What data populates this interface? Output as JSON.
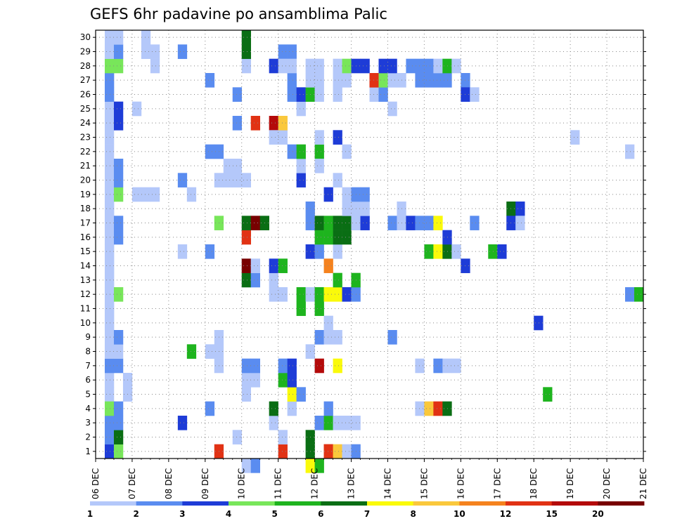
{
  "chart_data": {
    "type": "heatmap",
    "title": "GEFS 6hr padavine po ansamblima Palic",
    "xlabel": "",
    "ylabel": "",
    "x_tick_labels": [
      "06 DEC",
      "07 DEC",
      "08 DEC",
      "09 DEC",
      "10 DEC",
      "11 DEC",
      "12 DEC",
      "13 DEC",
      "14 DEC",
      "15 DEC",
      "16 DEC",
      "17 DEC",
      "18 DEC",
      "19 DEC",
      "20 DEC",
      "21 DEC"
    ],
    "y_tick_labels": [
      "1",
      "2",
      "3",
      "4",
      "5",
      "6",
      "7",
      "8",
      "9",
      "10",
      "11",
      "12",
      "13",
      "14",
      "15",
      "16",
      "17",
      "18",
      "19",
      "20",
      "21",
      "22",
      "23",
      "24",
      "25",
      "26",
      "27",
      "28",
      "29",
      "30"
    ],
    "xlim": [
      0,
      60
    ],
    "ylim": [
      0,
      30
    ],
    "grid": true,
    "levels": [
      "1",
      "2",
      "3",
      "4",
      "5",
      "6",
      "7",
      "8",
      "10",
      "12",
      "15",
      "20"
    ],
    "level_colors": [
      "#b4c8fa",
      "#5a8cf0",
      "#1e3cd7",
      "#78e65a",
      "#1eb41e",
      "#0a6e14",
      "#fafa0a",
      "#fac83c",
      "#f5821e",
      "#e13214",
      "#b40a0a",
      "#780000"
    ],
    "cells": [
      [
        1,
        0,
        1
      ],
      [
        1,
        1,
        1
      ],
      [
        1,
        2,
        1
      ],
      [
        1,
        3,
        1
      ],
      [
        1,
        4,
        1
      ],
      [
        1,
        5,
        1
      ],
      [
        1,
        6,
        1
      ],
      [
        1,
        7,
        1
      ],
      [
        1,
        8,
        1
      ],
      [
        1,
        9,
        1
      ],
      [
        1,
        10,
        1
      ],
      [
        1,
        11,
        1
      ],
      [
        1,
        12,
        1
      ],
      [
        1,
        13,
        1
      ],
      [
        1,
        14,
        1
      ],
      [
        1,
        15,
        1
      ],
      [
        1,
        16,
        1
      ],
      [
        1,
        17,
        1
      ],
      [
        1,
        18,
        1
      ],
      [
        1,
        19,
        1
      ],
      [
        1,
        20,
        1
      ],
      [
        1,
        21,
        1
      ],
      [
        1,
        22,
        1
      ],
      [
        1,
        23,
        1
      ],
      [
        1,
        24,
        1
      ],
      [
        1,
        25,
        1
      ],
      [
        1,
        26,
        1
      ],
      [
        1,
        27,
        1
      ],
      [
        1,
        28,
        1
      ],
      [
        1,
        0,
        3
      ],
      [
        1,
        1,
        2
      ],
      [
        1,
        2,
        2
      ],
      [
        1,
        3,
        4
      ],
      [
        1,
        6,
        2
      ],
      [
        1,
        7,
        1
      ],
      [
        1,
        9,
        1
      ],
      [
        1,
        10,
        1
      ],
      [
        1,
        11,
        1
      ],
      [
        1,
        12,
        1
      ],
      [
        1,
        13,
        1
      ],
      [
        1,
        14,
        1
      ],
      [
        1,
        15,
        1
      ],
      [
        1,
        16,
        1
      ],
      [
        1,
        17,
        1
      ],
      [
        1,
        18,
        1
      ],
      [
        1,
        25,
        2
      ],
      [
        1,
        26,
        2
      ],
      [
        1,
        27,
        4
      ],
      [
        1,
        28,
        1
      ],
      [
        1,
        29,
        1
      ],
      [
        2,
        0,
        4
      ],
      [
        2,
        1,
        6
      ],
      [
        2,
        2,
        2
      ],
      [
        2,
        3,
        2
      ],
      [
        2,
        6,
        2
      ],
      [
        2,
        7,
        1
      ],
      [
        2,
        8,
        2
      ],
      [
        2,
        11,
        4
      ],
      [
        2,
        15,
        2
      ],
      [
        2,
        16,
        2
      ],
      [
        2,
        18,
        4
      ],
      [
        2,
        19,
        2
      ],
      [
        2,
        20,
        2
      ],
      [
        2,
        23,
        3
      ],
      [
        2,
        24,
        3
      ],
      [
        2,
        27,
        4
      ],
      [
        2,
        28,
        2
      ],
      [
        2,
        29,
        1
      ],
      [
        3,
        4,
        1
      ],
      [
        3,
        5,
        1
      ],
      [
        4,
        18,
        1
      ],
      [
        4,
        24,
        1
      ],
      [
        5,
        18,
        1
      ],
      [
        5,
        28,
        1
      ],
      [
        5,
        29,
        1
      ],
      [
        6,
        18,
        1
      ],
      [
        6,
        27,
        1
      ],
      [
        6,
        28,
        1
      ],
      [
        9,
        2,
        3
      ],
      [
        9,
        14,
        1
      ],
      [
        9,
        19,
        2
      ],
      [
        9,
        28,
        2
      ],
      [
        10,
        7,
        5
      ],
      [
        10,
        18,
        1
      ],
      [
        12,
        3,
        2
      ],
      [
        12,
        7,
        1
      ],
      [
        12,
        14,
        2
      ],
      [
        12,
        21,
        2
      ],
      [
        12,
        26,
        2
      ],
      [
        13,
        6,
        1
      ],
      [
        13,
        7,
        1
      ],
      [
        13,
        8,
        1
      ],
      [
        13,
        16,
        4
      ],
      [
        13,
        19,
        1
      ],
      [
        13,
        21,
        2
      ],
      [
        13,
        0,
        10
      ],
      [
        14,
        19,
        1
      ],
      [
        14,
        20,
        1
      ],
      [
        15,
        1,
        1
      ],
      [
        15,
        19,
        1
      ],
      [
        15,
        20,
        1
      ],
      [
        15,
        25,
        2
      ],
      [
        15,
        23,
        2
      ],
      [
        16,
        4,
        1
      ],
      [
        16,
        5,
        1
      ],
      [
        16,
        6,
        2
      ],
      [
        16,
        15,
        10
      ],
      [
        16,
        16,
        6
      ],
      [
        16,
        12,
        6
      ],
      [
        16,
        13,
        12
      ],
      [
        16,
        19,
        1
      ],
      [
        16,
        27,
        1
      ],
      [
        16,
        28,
        6
      ],
      [
        16,
        29,
        6
      ],
      [
        16,
        -1,
        1
      ],
      [
        17,
        5,
        1
      ],
      [
        17,
        6,
        2
      ],
      [
        17,
        16,
        12
      ],
      [
        17,
        12,
        2
      ],
      [
        17,
        13,
        1
      ],
      [
        17,
        23,
        10
      ],
      [
        17,
        -1,
        2
      ],
      [
        18,
        16,
        6
      ],
      [
        19,
        2,
        1
      ],
      [
        19,
        3,
        6
      ],
      [
        19,
        11,
        1
      ],
      [
        19,
        12,
        1
      ],
      [
        19,
        13,
        3
      ],
      [
        19,
        23,
        11
      ],
      [
        19,
        22,
        1
      ],
      [
        19,
        27,
        3
      ],
      [
        20,
        0,
        10
      ],
      [
        20,
        1,
        1
      ],
      [
        20,
        5,
        5
      ],
      [
        20,
        6,
        2
      ],
      [
        20,
        11,
        1
      ],
      [
        20,
        13,
        5
      ],
      [
        20,
        22,
        1
      ],
      [
        20,
        23,
        8
      ],
      [
        20,
        28,
        2
      ],
      [
        20,
        27,
        1
      ],
      [
        21,
        3,
        1
      ],
      [
        21,
        4,
        7
      ],
      [
        21,
        6,
        3
      ],
      [
        21,
        21,
        2
      ],
      [
        21,
        25,
        2
      ],
      [
        21,
        26,
        2
      ],
      [
        21,
        28,
        2
      ],
      [
        21,
        27,
        1
      ],
      [
        21,
        5,
        3
      ],
      [
        22,
        4,
        2
      ],
      [
        22,
        10,
        5
      ],
      [
        22,
        11,
        5
      ],
      [
        22,
        19,
        3
      ],
      [
        22,
        20,
        1
      ],
      [
        22,
        21,
        5
      ],
      [
        22,
        24,
        1
      ],
      [
        22,
        25,
        3
      ],
      [
        23,
        7,
        1
      ],
      [
        23,
        16,
        2
      ],
      [
        23,
        17,
        2
      ],
      [
        23,
        11,
        1
      ],
      [
        23,
        14,
        3
      ],
      [
        23,
        0,
        6
      ],
      [
        23,
        1,
        6
      ],
      [
        23,
        -1,
        7
      ],
      [
        23,
        25,
        5
      ],
      [
        23,
        26,
        1
      ],
      [
        23,
        27,
        1
      ],
      [
        24,
        2,
        2
      ],
      [
        24,
        6,
        11
      ],
      [
        24,
        10,
        5
      ],
      [
        24,
        11,
        5
      ],
      [
        24,
        14,
        2
      ],
      [
        24,
        15,
        5
      ],
      [
        24,
        16,
        6
      ],
      [
        24,
        21,
        5
      ],
      [
        24,
        20,
        1
      ],
      [
        24,
        25,
        1
      ],
      [
        24,
        26,
        1
      ],
      [
        24,
        27,
        1
      ],
      [
        24,
        -1,
        5
      ],
      [
        24,
        22,
        1
      ],
      [
        24,
        8,
        2
      ],
      [
        25,
        0,
        10
      ],
      [
        25,
        2,
        5
      ],
      [
        25,
        3,
        2
      ],
      [
        25,
        8,
        1
      ],
      [
        25,
        9,
        1
      ],
      [
        25,
        11,
        7
      ],
      [
        25,
        13,
        9
      ],
      [
        25,
        15,
        5
      ],
      [
        25,
        16,
        5
      ],
      [
        25,
        0,
        10
      ],
      [
        25,
        18,
        3
      ],
      [
        26,
        0,
        8
      ],
      [
        26,
        2,
        1
      ],
      [
        26,
        6,
        7
      ],
      [
        26,
        8,
        1
      ],
      [
        26,
        11,
        7
      ],
      [
        26,
        12,
        5
      ],
      [
        26,
        14,
        1
      ],
      [
        26,
        15,
        6
      ],
      [
        26,
        16,
        6
      ],
      [
        26,
        19,
        1
      ],
      [
        26,
        22,
        3
      ],
      [
        26,
        25,
        1
      ],
      [
        26,
        26,
        1
      ],
      [
        26,
        27,
        1
      ],
      [
        27,
        0,
        1
      ],
      [
        27,
        2,
        1
      ],
      [
        27,
        11,
        3
      ],
      [
        27,
        15,
        6
      ],
      [
        27,
        16,
        6
      ],
      [
        27,
        17,
        1
      ],
      [
        27,
        18,
        1
      ],
      [
        27,
        21,
        1
      ],
      [
        27,
        26,
        1
      ],
      [
        27,
        27,
        4
      ],
      [
        28,
        0,
        2
      ],
      [
        28,
        2,
        1
      ],
      [
        28,
        11,
        2
      ],
      [
        28,
        12,
        5
      ],
      [
        28,
        16,
        1
      ],
      [
        28,
        17,
        1
      ],
      [
        28,
        18,
        2
      ],
      [
        28,
        27,
        3
      ],
      [
        29,
        16,
        3
      ],
      [
        29,
        17,
        1
      ],
      [
        29,
        18,
        2
      ],
      [
        29,
        27,
        3
      ],
      [
        30,
        25,
        1
      ],
      [
        30,
        26,
        10
      ],
      [
        31,
        25,
        2
      ],
      [
        31,
        26,
        4
      ],
      [
        31,
        27,
        3
      ],
      [
        32,
        16,
        2
      ],
      [
        32,
        8,
        2
      ],
      [
        32,
        24,
        1
      ],
      [
        32,
        26,
        1
      ],
      [
        32,
        27,
        3
      ],
      [
        33,
        16,
        1
      ],
      [
        33,
        17,
        1
      ],
      [
        33,
        26,
        1
      ],
      [
        34,
        16,
        3
      ],
      [
        34,
        27,
        2
      ],
      [
        35,
        3,
        1
      ],
      [
        35,
        6,
        1
      ],
      [
        35,
        16,
        2
      ],
      [
        35,
        26,
        2
      ],
      [
        35,
        27,
        2
      ],
      [
        36,
        3,
        8
      ],
      [
        36,
        14,
        5
      ],
      [
        36,
        16,
        2
      ],
      [
        36,
        26,
        2
      ],
      [
        36,
        27,
        2
      ],
      [
        37,
        3,
        10
      ],
      [
        37,
        6,
        2
      ],
      [
        37,
        14,
        7
      ],
      [
        37,
        16,
        7
      ],
      [
        37,
        26,
        2
      ],
      [
        37,
        27,
        1
      ],
      [
        38,
        3,
        6
      ],
      [
        38,
        6,
        1
      ],
      [
        38,
        14,
        6
      ],
      [
        38,
        15,
        3
      ],
      [
        38,
        26,
        2
      ],
      [
        38,
        27,
        5
      ],
      [
        39,
        6,
        1
      ],
      [
        39,
        14,
        1
      ],
      [
        39,
        27,
        1
      ],
      [
        40,
        13,
        3
      ],
      [
        40,
        26,
        2
      ],
      [
        40,
        25,
        3
      ],
      [
        41,
        16,
        2
      ],
      [
        41,
        25,
        1
      ],
      [
        43,
        14,
        5
      ],
      [
        44,
        14,
        3
      ],
      [
        45,
        17,
        6
      ],
      [
        45,
        16,
        3
      ],
      [
        46,
        17,
        3
      ],
      [
        46,
        16,
        2
      ],
      [
        46,
        16,
        1
      ],
      [
        48,
        9,
        3
      ],
      [
        49,
        4,
        5
      ],
      [
        52,
        22,
        1
      ],
      [
        58,
        11,
        2
      ],
      [
        59,
        11,
        5
      ],
      [
        58,
        21,
        1
      ]
    ]
  }
}
